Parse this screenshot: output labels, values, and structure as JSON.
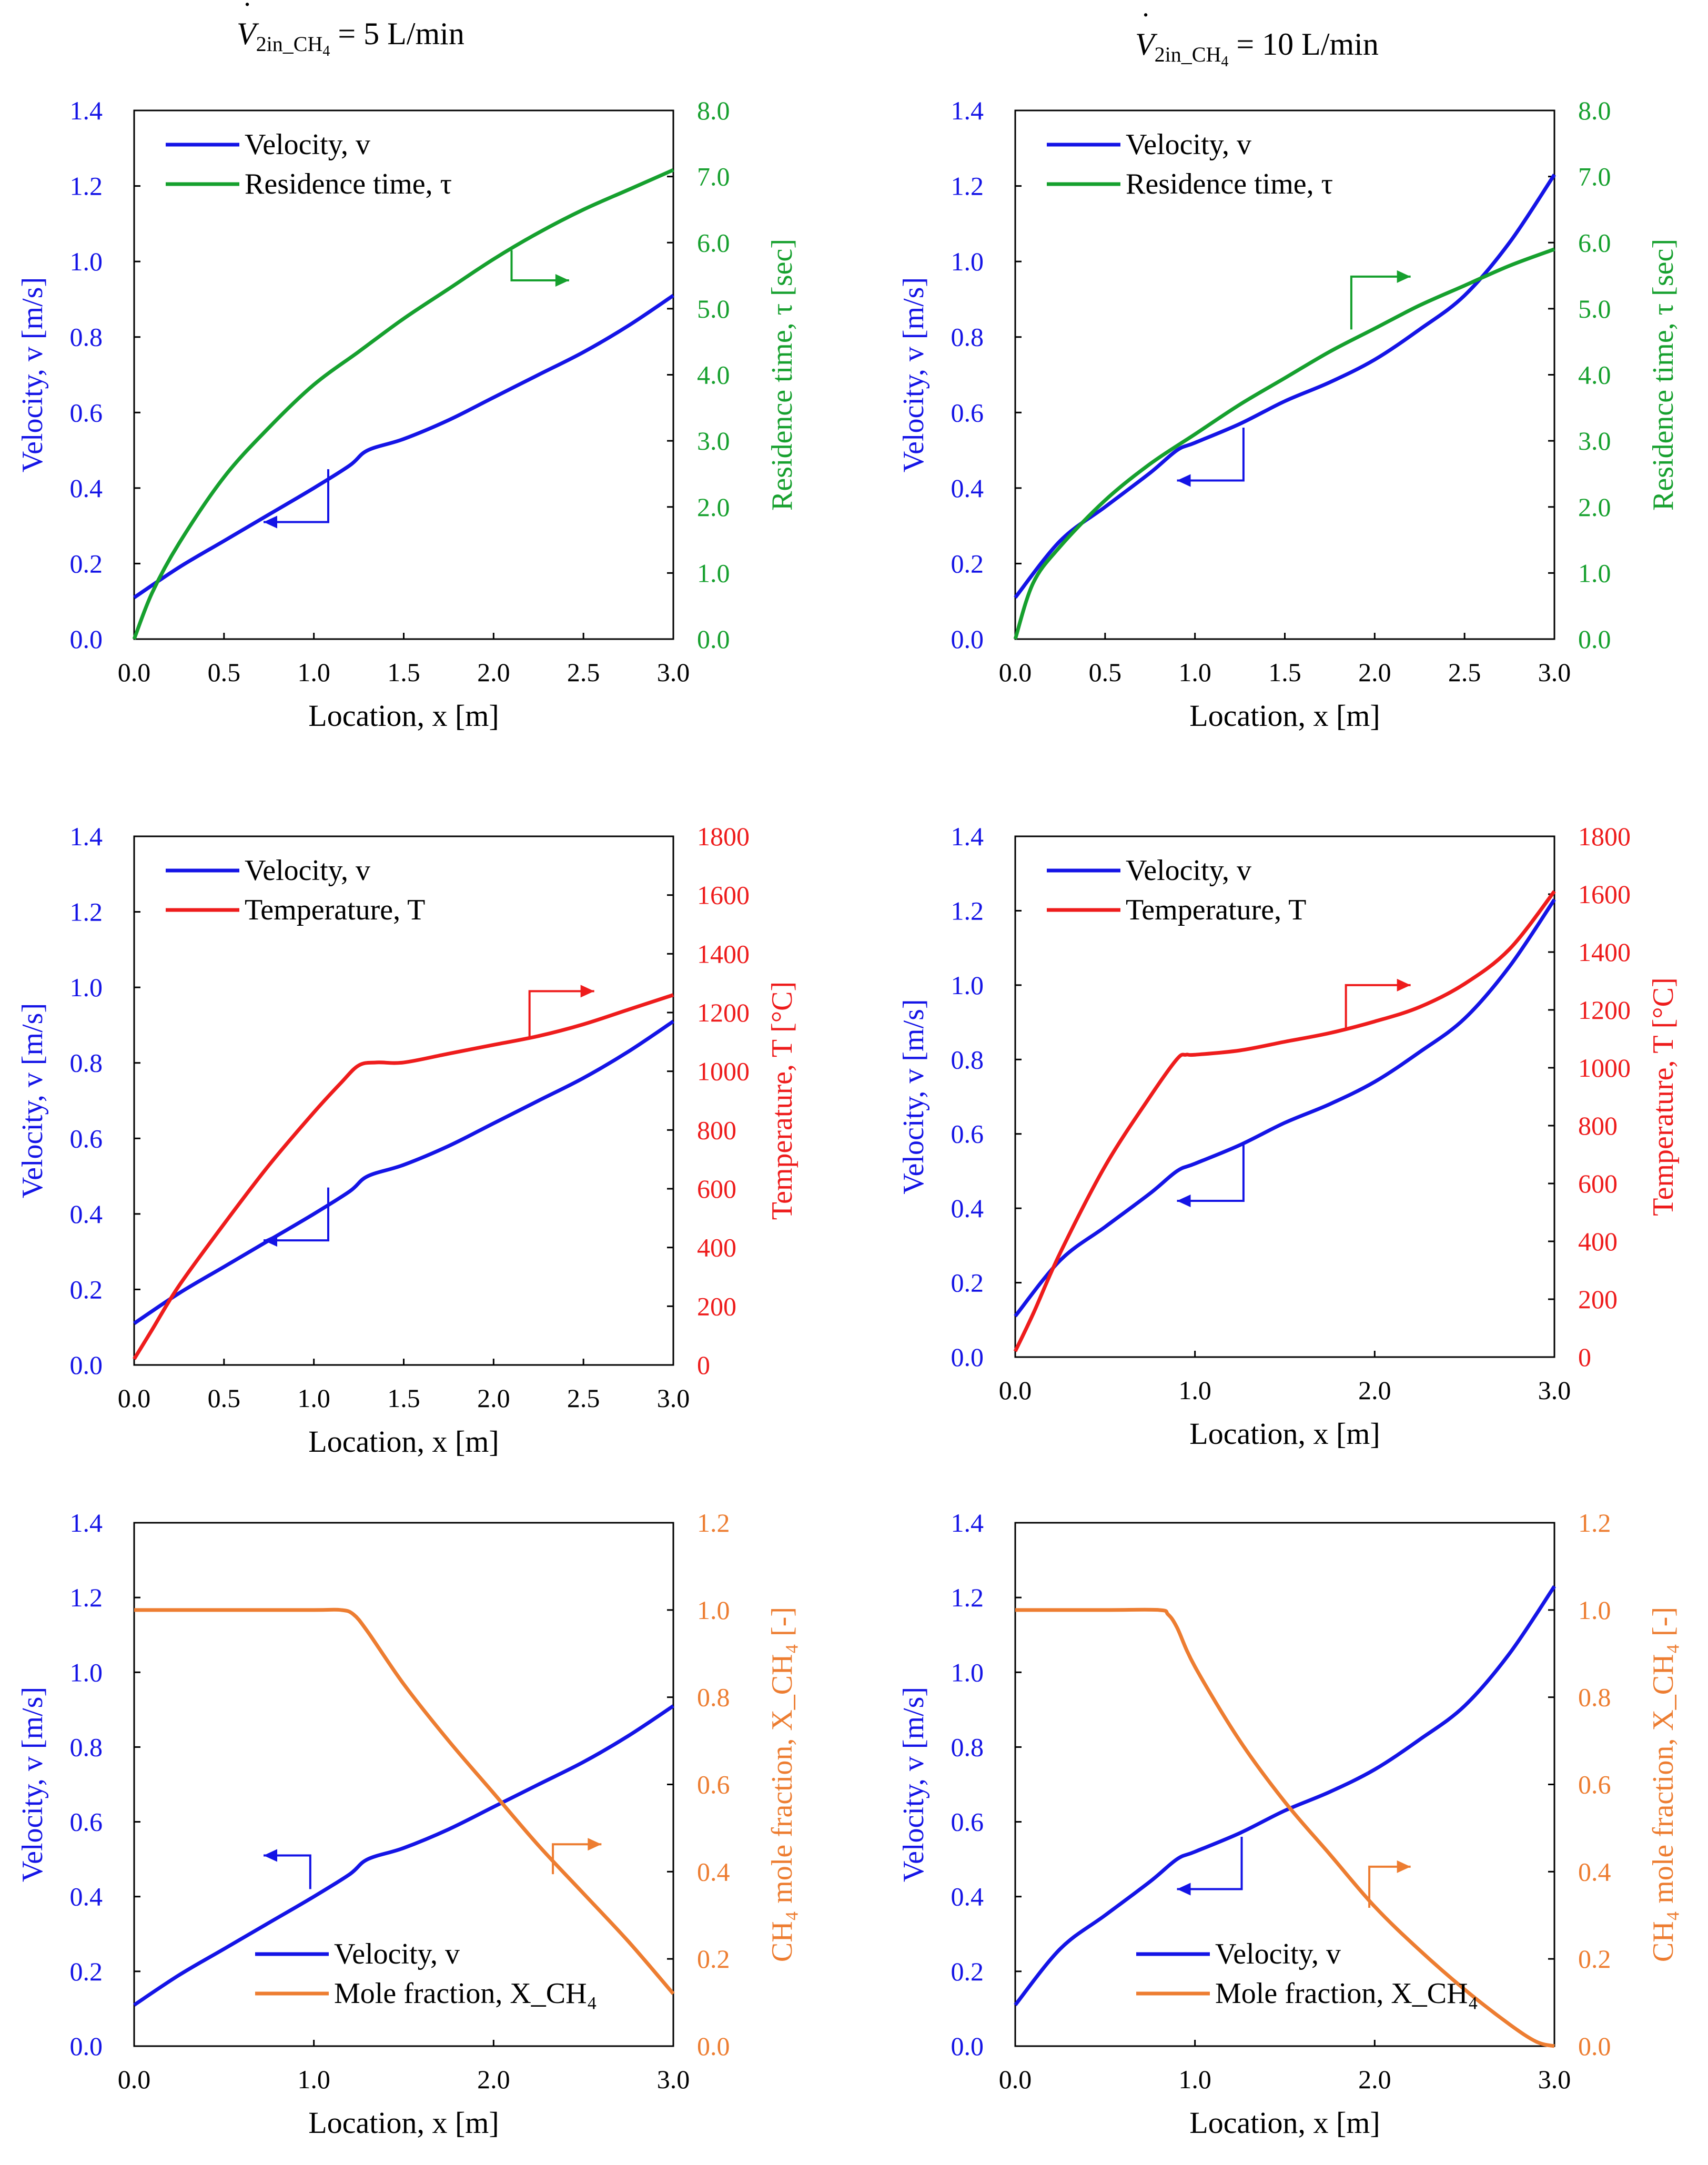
{
  "headers": [
    {
      "symbol": "V",
      "subscript": "2in_CH",
      "subscript_sub": "4",
      "equals_text": "= 5 L/min"
    },
    {
      "symbol": "V",
      "subscript": "2in_CH",
      "subscript_sub": "4",
      "equals_text": "= 10 L/min"
    }
  ],
  "colors": {
    "velocity": "#1414e6",
    "residence": "#16a02e",
    "temperature": "#ee1c1c",
    "mole": "#ed7d31",
    "axis": "#000000"
  },
  "chart_data": [
    {
      "type": "line",
      "xlabel": "Location, x [m]",
      "ylabel_left": "Velocity, v [m/s]",
      "ylabel_right": "Residence time, τ [sec]",
      "xlim": [
        0,
        3
      ],
      "xticks": [
        "0.0",
        "0.5",
        "1.0",
        "1.5",
        "2.0",
        "2.5",
        "3.0"
      ],
      "ylim_left": [
        0,
        1.4
      ],
      "yticks_left": [
        "0.0",
        "0.2",
        "0.4",
        "0.6",
        "0.8",
        "1.0",
        "1.2",
        "1.4"
      ],
      "ylim_right": [
        0,
        8
      ],
      "yticks_right": [
        "0.0",
        "1.0",
        "2.0",
        "3.0",
        "4.0",
        "5.0",
        "6.0",
        "7.0",
        "8.0"
      ],
      "legend": {
        "placement": "top-left",
        "entries": [
          {
            "series": 0,
            "label": "Velocity, v"
          },
          {
            "series": 1,
            "label": "Residence time, τ"
          }
        ]
      },
      "series": [
        {
          "name": "Velocity, v",
          "axis": "left",
          "color_key": "velocity",
          "x": [
            0,
            0.25,
            0.5,
            0.75,
            1.0,
            1.2,
            1.3,
            1.5,
            1.75,
            2.0,
            2.25,
            2.5,
            2.75,
            3.0
          ],
          "y": [
            0.11,
            0.19,
            0.26,
            0.33,
            0.4,
            0.46,
            0.5,
            0.53,
            0.58,
            0.64,
            0.7,
            0.76,
            0.83,
            0.91
          ]
        },
        {
          "name": "Residence time, τ",
          "axis": "right",
          "color_key": "residence",
          "x": [
            0,
            0.1,
            0.25,
            0.5,
            0.75,
            1.0,
            1.25,
            1.5,
            1.75,
            2.0,
            2.25,
            2.5,
            2.75,
            3.0
          ],
          "y": [
            0.0,
            0.7,
            1.45,
            2.45,
            3.2,
            3.85,
            4.35,
            4.85,
            5.3,
            5.75,
            6.15,
            6.5,
            6.8,
            7.1
          ]
        }
      ],
      "arrows": [
        {
          "from": [
            1.08,
            0.45
          ],
          "corner": [
            1.08,
            0.31
          ],
          "to": [
            0.72,
            0.31
          ],
          "axis": "left",
          "color_key": "velocity"
        },
        {
          "from": [
            2.1,
            1.03
          ],
          "corner": [
            2.1,
            0.95
          ],
          "to": [
            2.42,
            0.95
          ],
          "axis": "left",
          "color_key": "residence"
        }
      ]
    },
    {
      "type": "line",
      "xlabel": "Location, x [m]",
      "ylabel_left": "Velocity, v [m/s]",
      "ylabel_right": "Residence time, τ [sec]",
      "xlim": [
        0,
        3
      ],
      "xticks": [
        "0.0",
        "0.5",
        "1.0",
        "1.5",
        "2.0",
        "2.5",
        "3.0"
      ],
      "ylim_left": [
        0,
        1.4
      ],
      "yticks_left": [
        "0.0",
        "0.2",
        "0.4",
        "0.6",
        "0.8",
        "1.0",
        "1.2",
        "1.4"
      ],
      "ylim_right": [
        0,
        8
      ],
      "yticks_right": [
        "0.0",
        "1.0",
        "2.0",
        "3.0",
        "4.0",
        "5.0",
        "6.0",
        "7.0",
        "8.0"
      ],
      "legend": {
        "placement": "top-left",
        "entries": [
          {
            "series": 0,
            "label": "Velocity, v"
          },
          {
            "series": 1,
            "label": "Residence time, τ"
          }
        ]
      },
      "series": [
        {
          "name": "Velocity, v",
          "axis": "left",
          "color_key": "velocity",
          "x": [
            0,
            0.25,
            0.5,
            0.75,
            0.9,
            1.0,
            1.25,
            1.5,
            1.75,
            2.0,
            2.25,
            2.5,
            2.75,
            3.0
          ],
          "y": [
            0.11,
            0.26,
            0.35,
            0.44,
            0.5,
            0.52,
            0.57,
            0.63,
            0.68,
            0.74,
            0.82,
            0.91,
            1.05,
            1.23
          ]
        },
        {
          "name": "Residence time, τ",
          "axis": "right",
          "color_key": "residence",
          "x": [
            0,
            0.1,
            0.25,
            0.5,
            0.75,
            1.0,
            1.25,
            1.5,
            1.75,
            2.0,
            2.25,
            2.5,
            2.75,
            3.0
          ],
          "y": [
            0.0,
            0.85,
            1.4,
            2.1,
            2.65,
            3.1,
            3.55,
            3.95,
            4.35,
            4.7,
            5.05,
            5.35,
            5.65,
            5.9
          ]
        }
      ],
      "arrows": [
        {
          "from": [
            1.27,
            0.56
          ],
          "corner": [
            1.27,
            0.42
          ],
          "to": [
            0.9,
            0.42
          ],
          "axis": "left",
          "color_key": "velocity"
        },
        {
          "from": [
            1.87,
            0.82
          ],
          "corner": [
            1.87,
            0.96
          ],
          "to": [
            2.2,
            0.96
          ],
          "axis": "left",
          "color_key": "residence"
        }
      ]
    },
    {
      "type": "line",
      "xlabel": "Location, x [m]",
      "ylabel_left": "Velocity, v [m/s]",
      "ylabel_right": "Temperature, T [°C]",
      "xlim": [
        0,
        3
      ],
      "xticks": [
        "0.0",
        "0.5",
        "1.0",
        "1.5",
        "2.0",
        "2.5",
        "3.0"
      ],
      "ylim_left": [
        0,
        1.4
      ],
      "yticks_left": [
        "0.0",
        "0.2",
        "0.4",
        "0.6",
        "0.8",
        "1.0",
        "1.2",
        "1.4"
      ],
      "ylim_right": [
        0,
        1800
      ],
      "yticks_right": [
        "0",
        "200",
        "400",
        "600",
        "800",
        "1000",
        "1200",
        "1400",
        "1600",
        "1800"
      ],
      "legend": {
        "placement": "top-left",
        "entries": [
          {
            "series": 0,
            "label": "Velocity, v"
          },
          {
            "series": 1,
            "label": "Temperature, T"
          }
        ]
      },
      "series": [
        {
          "name": "Velocity, v",
          "axis": "left",
          "color_key": "velocity",
          "x": [
            0,
            0.25,
            0.5,
            0.75,
            1.0,
            1.2,
            1.3,
            1.5,
            1.75,
            2.0,
            2.25,
            2.5,
            2.75,
            3.0
          ],
          "y": [
            0.11,
            0.19,
            0.26,
            0.33,
            0.4,
            0.46,
            0.5,
            0.53,
            0.58,
            0.64,
            0.7,
            0.76,
            0.83,
            0.91
          ]
        },
        {
          "name": "Temperature, T",
          "axis": "right",
          "color_key": "temperature",
          "x": [
            0,
            0.1,
            0.25,
            0.5,
            0.75,
            1.0,
            1.15,
            1.25,
            1.35,
            1.5,
            1.75,
            2.0,
            2.25,
            2.5,
            2.75,
            3.0
          ],
          "y": [
            20,
            120,
            270,
            480,
            680,
            860,
            960,
            1020,
            1030,
            1030,
            1060,
            1090,
            1120,
            1160,
            1210,
            1260
          ]
        }
      ],
      "arrows": [
        {
          "from": [
            1.08,
            0.47
          ],
          "corner": [
            1.08,
            0.33
          ],
          "to": [
            0.72,
            0.33
          ],
          "axis": "left",
          "color_key": "velocity"
        },
        {
          "from": [
            2.2,
            0.87
          ],
          "corner": [
            2.2,
            0.99
          ],
          "to": [
            2.56,
            0.99
          ],
          "axis": "left",
          "color_key": "temperature"
        }
      ]
    },
    {
      "type": "line",
      "xlabel": "Location, x [m]",
      "ylabel_left": "Velocity, v [m/s]",
      "ylabel_right": "Temperature, T [°C]",
      "xlim": [
        0,
        3
      ],
      "xticks": [
        "0.0",
        "1.0",
        "2.0",
        "3.0"
      ],
      "ylim_left": [
        0,
        1.4
      ],
      "yticks_left": [
        "0.0",
        "0.2",
        "0.4",
        "0.6",
        "0.8",
        "1.0",
        "1.2",
        "1.4"
      ],
      "ylim_right": [
        0,
        1800
      ],
      "yticks_right": [
        "0",
        "200",
        "400",
        "600",
        "800",
        "1000",
        "1200",
        "1400",
        "1600",
        "1800"
      ],
      "legend": {
        "placement": "top-left",
        "entries": [
          {
            "series": 0,
            "label": "Velocity, v"
          },
          {
            "series": 1,
            "label": "Temperature, T"
          }
        ]
      },
      "series": [
        {
          "name": "Velocity, v",
          "axis": "left",
          "color_key": "velocity",
          "x": [
            0,
            0.25,
            0.5,
            0.75,
            0.9,
            1.0,
            1.25,
            1.5,
            1.75,
            2.0,
            2.25,
            2.5,
            2.75,
            3.0
          ],
          "y": [
            0.11,
            0.26,
            0.35,
            0.44,
            0.5,
            0.52,
            0.57,
            0.63,
            0.68,
            0.74,
            0.82,
            0.91,
            1.05,
            1.23
          ]
        },
        {
          "name": "Temperature, T",
          "axis": "right",
          "color_key": "temperature",
          "x": [
            0,
            0.1,
            0.25,
            0.5,
            0.75,
            0.9,
            0.95,
            1.0,
            1.25,
            1.5,
            1.75,
            2.0,
            2.25,
            2.5,
            2.75,
            3.0
          ],
          "y": [
            20,
            150,
            360,
            660,
            900,
            1030,
            1045,
            1045,
            1060,
            1090,
            1120,
            1160,
            1210,
            1290,
            1410,
            1610
          ]
        }
      ],
      "arrows": [
        {
          "from": [
            1.27,
            0.57
          ],
          "corner": [
            1.27,
            0.42
          ],
          "to": [
            0.9,
            0.42
          ],
          "axis": "left",
          "color_key": "velocity"
        },
        {
          "from": [
            1.84,
            0.88
          ],
          "corner": [
            1.84,
            1.0
          ],
          "to": [
            2.2,
            1.0
          ],
          "axis": "left",
          "color_key": "temperature"
        }
      ]
    },
    {
      "type": "line",
      "xlabel": "Location, x [m]",
      "ylabel_left": "Velocity, v [m/s]",
      "ylabel_right": "CH₄ mole fraction, X_CH₄ [-]",
      "xlim": [
        0,
        3
      ],
      "xticks": [
        "0.0",
        "1.0",
        "2.0",
        "3.0"
      ],
      "ylim_left": [
        0,
        1.4
      ],
      "yticks_left": [
        "0.0",
        "0.2",
        "0.4",
        "0.6",
        "0.8",
        "1.0",
        "1.2",
        "1.4"
      ],
      "ylim_right": [
        0,
        1.2
      ],
      "yticks_right": [
        "0.0",
        "0.2",
        "0.4",
        "0.6",
        "0.8",
        "1.0",
        "1.2"
      ],
      "legend": {
        "placement": "bottom-center",
        "entries": [
          {
            "series": 0,
            "label": "Velocity, v"
          },
          {
            "series": 1,
            "label": "Mole fraction, X_CH₄"
          }
        ]
      },
      "series": [
        {
          "name": "Velocity, v",
          "axis": "left",
          "color_key": "velocity",
          "x": [
            0,
            0.25,
            0.5,
            0.75,
            1.0,
            1.2,
            1.3,
            1.5,
            1.75,
            2.0,
            2.25,
            2.5,
            2.75,
            3.0
          ],
          "y": [
            0.11,
            0.19,
            0.26,
            0.33,
            0.4,
            0.46,
            0.5,
            0.53,
            0.58,
            0.64,
            0.7,
            0.76,
            0.83,
            0.91
          ]
        },
        {
          "name": "Mole fraction, X_CH₄",
          "axis": "right",
          "color_key": "mole",
          "x": [
            0,
            0.5,
            1.0,
            1.15,
            1.22,
            1.3,
            1.5,
            1.75,
            2.0,
            2.25,
            2.5,
            2.75,
            3.0
          ],
          "y": [
            1.0,
            1.0,
            1.0,
            1.0,
            0.99,
            0.95,
            0.83,
            0.7,
            0.58,
            0.46,
            0.35,
            0.24,
            0.12
          ]
        }
      ],
      "arrows": [
        {
          "from": [
            0.98,
            0.42
          ],
          "corner": [
            0.98,
            0.51
          ],
          "to": [
            0.72,
            0.51
          ],
          "axis": "left",
          "color_key": "velocity"
        },
        {
          "from": [
            2.33,
            0.46
          ],
          "corner": [
            2.33,
            0.54
          ],
          "to": [
            2.6,
            0.54
          ],
          "axis": "left",
          "color_key": "mole"
        }
      ]
    },
    {
      "type": "line",
      "xlabel": "Location, x [m]",
      "ylabel_left": "Velocity, v [m/s]",
      "ylabel_right": "CH₄ mole fraction, X_CH₄ [-]",
      "xlim": [
        0,
        3
      ],
      "xticks": [
        "0.0",
        "1.0",
        "2.0",
        "3.0"
      ],
      "ylim_left": [
        0,
        1.4
      ],
      "yticks_left": [
        "0.0",
        "0.2",
        "0.4",
        "0.6",
        "0.8",
        "1.0",
        "1.2",
        "1.4"
      ],
      "ylim_right": [
        0,
        1.2
      ],
      "yticks_right": [
        "0.0",
        "0.2",
        "0.4",
        "0.6",
        "0.8",
        "1.0",
        "1.2"
      ],
      "legend": {
        "placement": "bottom-center",
        "entries": [
          {
            "series": 0,
            "label": "Velocity, v"
          },
          {
            "series": 1,
            "label": "Mole fraction, X_CH₄"
          }
        ]
      },
      "series": [
        {
          "name": "Velocity, v",
          "axis": "left",
          "color_key": "velocity",
          "x": [
            0,
            0.25,
            0.5,
            0.75,
            0.9,
            1.0,
            1.25,
            1.5,
            1.75,
            2.0,
            2.25,
            2.5,
            2.75,
            3.0
          ],
          "y": [
            0.11,
            0.26,
            0.35,
            0.44,
            0.5,
            0.52,
            0.57,
            0.63,
            0.68,
            0.74,
            0.82,
            0.91,
            1.05,
            1.23
          ]
        },
        {
          "name": "Mole fraction, X_CH₄",
          "axis": "right",
          "color_key": "mole",
          "x": [
            0,
            0.5,
            0.8,
            0.85,
            0.9,
            1.0,
            1.25,
            1.5,
            1.75,
            2.0,
            2.25,
            2.5,
            2.75,
            2.9,
            3.0
          ],
          "y": [
            1.0,
            1.0,
            1.0,
            0.99,
            0.96,
            0.87,
            0.7,
            0.56,
            0.44,
            0.32,
            0.22,
            0.13,
            0.05,
            0.01,
            0.0
          ]
        }
      ],
      "arrows": [
        {
          "from": [
            1.26,
            0.56
          ],
          "corner": [
            1.26,
            0.42
          ],
          "to": [
            0.9,
            0.42
          ],
          "axis": "left",
          "color_key": "velocity"
        },
        {
          "from": [
            1.97,
            0.37
          ],
          "corner": [
            1.97,
            0.48
          ],
          "to": [
            2.2,
            0.48
          ],
          "axis": "left",
          "color_key": "mole"
        }
      ]
    }
  ]
}
